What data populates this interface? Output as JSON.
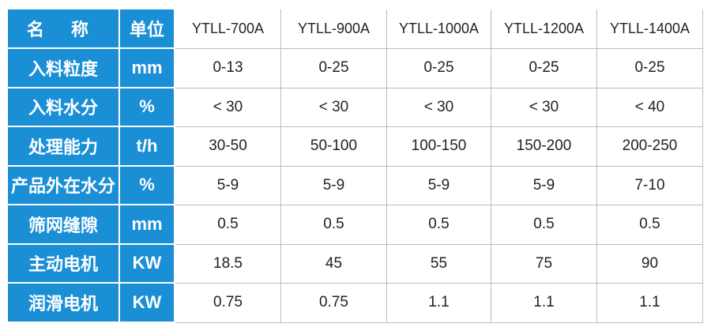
{
  "table": {
    "header": [
      "名 称",
      "单位",
      "YTLL-700A",
      "YTLL-900A",
      "YTLL-1000A",
      "YTLL-1200A",
      "YTLL-1400A"
    ],
    "rows": [
      [
        "入料粒度",
        "mm",
        "0-13",
        "0-25",
        "0-25",
        "0-25",
        "0-25"
      ],
      [
        "入料水分",
        "%",
        "< 30",
        "< 30",
        "< 30",
        "< 30",
        "< 40"
      ],
      [
        "处理能力",
        "t/h",
        "30-50",
        "50-100",
        "100-150",
        "150-200",
        "200-250"
      ],
      [
        "产品外在水分",
        "%",
        "5-9",
        "5-9",
        "5-9",
        "5-9",
        "7-10"
      ],
      [
        "筛网缝隙",
        "mm",
        "0.5",
        "0.5",
        "0.5",
        "0.5",
        "0.5"
      ],
      [
        "主动电机",
        "KW",
        "18.5",
        "45",
        "55",
        "75",
        "90"
      ],
      [
        "润滑电机",
        "KW",
        "0.75",
        "0.75",
        "1.1",
        "1.1",
        "1.1"
      ]
    ]
  }
}
